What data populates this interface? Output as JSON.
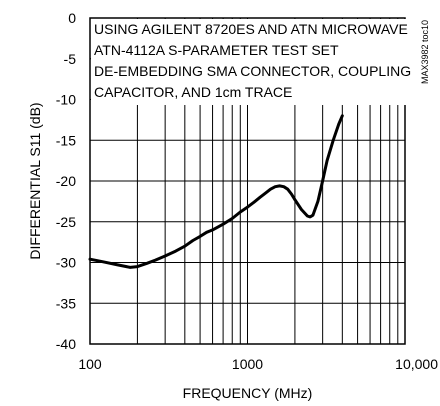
{
  "chart_data": {
    "type": "line",
    "title": "",
    "xlabel": "FREQUENCY (MHz)",
    "ylabel": "DIFFERENTIAL S11 (dB)",
    "x_scale": "log",
    "xlim": [
      100,
      10000
    ],
    "ylim": [
      -40,
      0
    ],
    "x_tick_labels": [
      "100",
      "1000",
      "10,000"
    ],
    "y_tick_labels": [
      "0",
      "-5",
      "-10",
      "-15",
      "-20",
      "-25",
      "-30",
      "-35",
      "-40"
    ],
    "grid": true,
    "annotation_lines": [
      "USING AGILENT 8720ES AND ATN MICROWAVE",
      "ATN-4112A S-PARAMETER TEST SET",
      "DE-EMBEDDING SMA CONNECTOR, COUPLING",
      "CAPACITOR, AND 1cm TRACE"
    ],
    "side_label": "MAX3982 toc10",
    "series": [
      {
        "color": "#000000",
        "points": [
          [
            100,
            -29.6
          ],
          [
            120,
            -29.9
          ],
          [
            150,
            -30.3
          ],
          [
            180,
            -30.6
          ],
          [
            200,
            -30.5
          ],
          [
            230,
            -30.1
          ],
          [
            260,
            -29.7
          ],
          [
            300,
            -29.2
          ],
          [
            350,
            -28.6
          ],
          [
            400,
            -28.0
          ],
          [
            450,
            -27.3
          ],
          [
            500,
            -26.8
          ],
          [
            550,
            -26.3
          ],
          [
            600,
            -26.0
          ],
          [
            700,
            -25.3
          ],
          [
            800,
            -24.6
          ],
          [
            900,
            -23.8
          ],
          [
            1000,
            -23.2
          ],
          [
            1100,
            -22.6
          ],
          [
            1200,
            -22.0
          ],
          [
            1300,
            -21.5
          ],
          [
            1400,
            -21.0
          ],
          [
            1500,
            -20.7
          ],
          [
            1600,
            -20.6
          ],
          [
            1700,
            -20.7
          ],
          [
            1800,
            -21.0
          ],
          [
            1900,
            -21.6
          ],
          [
            2000,
            -22.3
          ],
          [
            2200,
            -23.5
          ],
          [
            2400,
            -24.3
          ],
          [
            2500,
            -24.4
          ],
          [
            2600,
            -24.2
          ],
          [
            2800,
            -22.5
          ],
          [
            3000,
            -20.0
          ],
          [
            3200,
            -17.5
          ],
          [
            3500,
            -15.0
          ],
          [
            3800,
            -13.0
          ],
          [
            4000,
            -12.0
          ]
        ]
      }
    ]
  }
}
